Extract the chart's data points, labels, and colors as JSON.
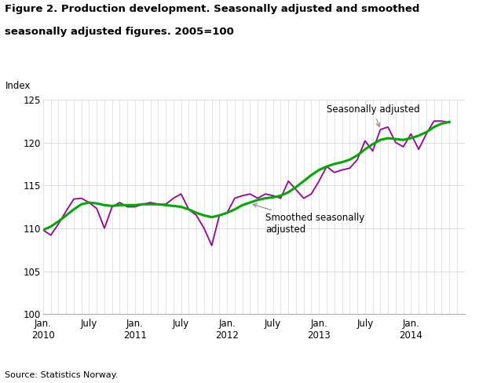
{
  "title_line1": "Figure 2. Production development. Seasonally adjusted and smoothed",
  "title_line2": "seasonally adjusted figures. 2005=100",
  "ylabel": "Index",
  "ylim": [
    100,
    125
  ],
  "yticks": [
    100,
    105,
    110,
    115,
    120,
    125
  ],
  "source": "Source: Statistics Norway.",
  "color_sa": "#9b009b",
  "color_smooth": "#00aa00",
  "linewidth_sa": 1.3,
  "linewidth_smooth": 2.2,
  "annotation_sa": "Seasonally adjusted",
  "annotation_smooth": "Smoothed seasonally\nadjusted",
  "sa_values": [
    109.8,
    109.2,
    110.5,
    112.0,
    113.4,
    113.5,
    113.0,
    112.3,
    110.0,
    112.5,
    113.0,
    112.5,
    112.5,
    112.8,
    113.0,
    112.8,
    112.8,
    113.5,
    114.0,
    112.2,
    111.5,
    110.0,
    108.0,
    111.5,
    111.8,
    113.5,
    113.8,
    114.0,
    113.5,
    114.0,
    113.8,
    113.5,
    115.5,
    114.5,
    113.5,
    114.0,
    115.5,
    117.2,
    116.5,
    116.8,
    117.0,
    118.0,
    120.2,
    119.0,
    121.5,
    121.8,
    120.0,
    119.5,
    121.0,
    119.2,
    121.0,
    122.5,
    122.5,
    122.3
  ],
  "smooth_values": [
    109.8,
    110.2,
    110.8,
    111.5,
    112.2,
    112.8,
    113.0,
    112.9,
    112.7,
    112.6,
    112.7,
    112.7,
    112.7,
    112.8,
    112.8,
    112.8,
    112.7,
    112.6,
    112.5,
    112.2,
    111.8,
    111.5,
    111.3,
    111.5,
    111.8,
    112.2,
    112.7,
    113.0,
    113.3,
    113.5,
    113.6,
    113.8,
    114.2,
    114.8,
    115.5,
    116.2,
    116.8,
    117.2,
    117.5,
    117.7,
    118.0,
    118.5,
    119.2,
    119.8,
    120.3,
    120.5,
    120.4,
    120.3,
    120.5,
    120.8,
    121.2,
    121.8,
    122.2,
    122.4
  ],
  "xtick_positions": [
    0,
    6,
    12,
    18,
    24,
    30,
    36,
    42,
    48
  ],
  "xtick_labels": [
    "Jan.\n2010",
    "July",
    "Jan.\n2011",
    "July",
    "Jan.\n2012",
    "July",
    "Jan.\n2013",
    "July",
    "Jan.\n2014"
  ],
  "n_points": 54,
  "xlim_max": 55
}
